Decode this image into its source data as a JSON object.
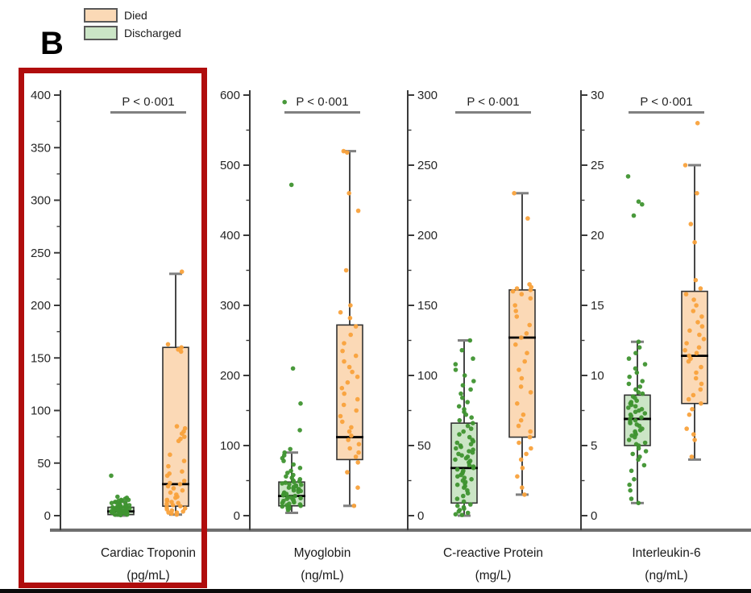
{
  "panel_label": "B",
  "legend": {
    "items": [
      {
        "label": "Died",
        "color": "#fbd9b6"
      },
      {
        "label": "Discharged",
        "color": "#cbe5c6"
      }
    ]
  },
  "colors": {
    "died_fill": "#fbd9b6",
    "died_point": "#f9a23c",
    "discharged_fill": "#cbe5c6",
    "discharged_point": "#3f9430",
    "box_stroke": "#333333",
    "median": "#000000",
    "whisker": "#333333",
    "whisker_cap": "#808080",
    "axis": "#3a3a3a",
    "tick_label": "#262626",
    "baseline": "#6f6f6f",
    "p_underline": "#808080",
    "highlight": "#b00d0d"
  },
  "chart_data": [
    {
      "type": "box",
      "title_line1": "Cardiac Troponin",
      "title_line2": "(pg/mL)",
      "p_label": "P < 0·001",
      "ylim": [
        0,
        400
      ],
      "ytick_step": 50,
      "minor_step": 25,
      "labels_side": "left",
      "grid": false,
      "highlighted": true,
      "groups": [
        {
          "name": "Discharged",
          "box": {
            "q1": 1,
            "median": 4,
            "q3": 8,
            "whisker_low": 0,
            "whisker_high": 13
          },
          "points": [
            38,
            18,
            17,
            16,
            15,
            15,
            14,
            14,
            13,
            13,
            12,
            12,
            11,
            11,
            10,
            10,
            10,
            9,
            9,
            9,
            8,
            8,
            8,
            8,
            7,
            7,
            7,
            7,
            6,
            6,
            6,
            6,
            5,
            5,
            5,
            5,
            4,
            4,
            4,
            4,
            3,
            3,
            3,
            3,
            2,
            2,
            2,
            2,
            1,
            1,
            1,
            0.5
          ]
        },
        {
          "name": "Died",
          "box": {
            "q1": 9,
            "median": 30,
            "q3": 160,
            "whisker_low": 1,
            "whisker_high": 230
          },
          "points": [
            232,
            163,
            160,
            158,
            156,
            85,
            83,
            80,
            78,
            75,
            73,
            71,
            58,
            52,
            47,
            42,
            40,
            38,
            33,
            31,
            30,
            28,
            26,
            24,
            22,
            20,
            18,
            17,
            15,
            14,
            13,
            12,
            11,
            10,
            9,
            8,
            7,
            6,
            5,
            4,
            3,
            3,
            2,
            1
          ]
        }
      ]
    },
    {
      "type": "box",
      "title_line1": "Myoglobin",
      "title_line2": "(ng/mL)",
      "p_label": "P < 0·001",
      "ylim": [
        0,
        600
      ],
      "ytick_step": 100,
      "minor_step": 50,
      "labels_side": "left",
      "grid": false,
      "highlighted": false,
      "groups": [
        {
          "name": "Discharged",
          "box": {
            "q1": 14,
            "median": 28,
            "q3": 48,
            "whisker_low": 4,
            "whisker_high": 90
          },
          "points": [
            590,
            472,
            210,
            160,
            122,
            95,
            90,
            86,
            82,
            78,
            73,
            68,
            64,
            61,
            58,
            56,
            54,
            52,
            50,
            49,
            48,
            47,
            46,
            45,
            44,
            43,
            42,
            41,
            40,
            39,
            38,
            37,
            36,
            35,
            34,
            33,
            32,
            31,
            30,
            29,
            28,
            27,
            26,
            25,
            24,
            23,
            22,
            21,
            20,
            19,
            18,
            17,
            16,
            15,
            14,
            13,
            12,
            11,
            10,
            8
          ]
        },
        {
          "name": "Died",
          "box": {
            "q1": 80,
            "median": 112,
            "q3": 272,
            "whisker_low": 14,
            "whisker_high": 520
          },
          "points": [
            520,
            518,
            460,
            435,
            350,
            300,
            290,
            282,
            270,
            258,
            246,
            235,
            228,
            220,
            212,
            205,
            198,
            190,
            182,
            174,
            166,
            158,
            150,
            142,
            134,
            126,
            120,
            114,
            108,
            102,
            96,
            90,
            84,
            76,
            62,
            40,
            14
          ]
        }
      ]
    },
    {
      "type": "box",
      "title_line1": "C-reactive Protein",
      "title_line2": "(mg/L)",
      "p_label": "P < 0·001",
      "ylim": [
        0,
        300
      ],
      "ytick_step": 50,
      "minor_step": 25,
      "labels_side": "right",
      "grid": false,
      "highlighted": false,
      "groups": [
        {
          "name": "Discharged",
          "box": {
            "q1": 9,
            "median": 34,
            "q3": 66,
            "whisker_low": 0,
            "whisker_high": 125
          },
          "points": [
            125,
            118,
            112,
            108,
            104,
            100,
            96,
            93,
            90,
            87,
            84,
            81,
            78,
            76,
            74,
            72,
            70,
            68,
            66,
            64,
            62,
            60,
            58,
            56,
            54,
            53,
            52,
            51,
            50,
            49,
            48,
            47,
            46,
            45,
            44,
            43,
            42,
            41,
            40,
            39,
            38,
            36,
            35,
            34,
            33,
            32,
            31,
            30,
            29,
            28,
            27,
            26,
            25,
            24,
            23,
            22,
            21,
            20,
            18,
            16,
            14,
            12,
            10,
            8,
            7,
            6,
            5,
            4,
            3,
            2,
            1,
            0.5
          ]
        },
        {
          "name": "Died",
          "box": {
            "q1": 56,
            "median": 127,
            "q3": 161,
            "whisker_low": 15,
            "whisker_high": 230
          },
          "points": [
            230,
            212,
            165,
            163,
            162,
            161,
            160,
            158,
            155,
            150,
            146,
            142,
            136,
            130,
            127,
            122,
            116,
            110,
            104,
            98,
            92,
            88,
            80,
            72,
            68,
            64,
            60,
            56,
            52,
            48,
            44,
            40,
            34,
            28,
            20,
            15
          ]
        }
      ]
    },
    {
      "type": "box",
      "title_line1": "Interleukin-6",
      "title_line2": "(ng/mL)",
      "p_label": "P < 0·001",
      "ylim": [
        0,
        30
      ],
      "ytick_step": 5,
      "minor_step": 2.5,
      "labels_side": "right",
      "grid": false,
      "highlighted": false,
      "groups": [
        {
          "name": "Discharged",
          "box": {
            "q1": 5,
            "median": 6.9,
            "q3": 8.6,
            "whisker_low": 0.9,
            "whisker_high": 12.4
          },
          "points": [
            24.2,
            22.4,
            22.2,
            21.4,
            12.4,
            12.0,
            11.6,
            11.2,
            10.8,
            10.5,
            10.2,
            9.9,
            9.6,
            9.4,
            9.2,
            9.0,
            8.8,
            8.7,
            8.5,
            8.4,
            8.2,
            8.1,
            8.0,
            7.9,
            7.8,
            7.7,
            7.6,
            7.5,
            7.4,
            7.3,
            7.2,
            7.1,
            7.0,
            6.9,
            6.8,
            6.7,
            6.6,
            6.5,
            6.4,
            6.2,
            6.1,
            6.0,
            5.9,
            5.8,
            5.7,
            5.6,
            5.4,
            5.2,
            5.1,
            5.0,
            4.8,
            4.6,
            4.4,
            4.2,
            4.0,
            3.6,
            3.2,
            2.6,
            2.2,
            1.8,
            1.2,
            0.9
          ]
        },
        {
          "name": "Died",
          "box": {
            "q1": 8,
            "median": 11.4,
            "q3": 16,
            "whisker_low": 4,
            "whisker_high": 25
          },
          "points": [
            28,
            25,
            23,
            20.8,
            19.5,
            16.8,
            16.2,
            15.8,
            15.4,
            15.0,
            14.6,
            14.2,
            13.8,
            13.5,
            13.2,
            12.9,
            12.6,
            12.3,
            12.0,
            11.8,
            11.6,
            11.4,
            11.2,
            11.0,
            10.6,
            10.2,
            9.8,
            9.4,
            9.0,
            8.6,
            8.3,
            8.0,
            7.6,
            7.2,
            6.2,
            5.8,
            5.4,
            4.2
          ]
        }
      ]
    }
  ]
}
